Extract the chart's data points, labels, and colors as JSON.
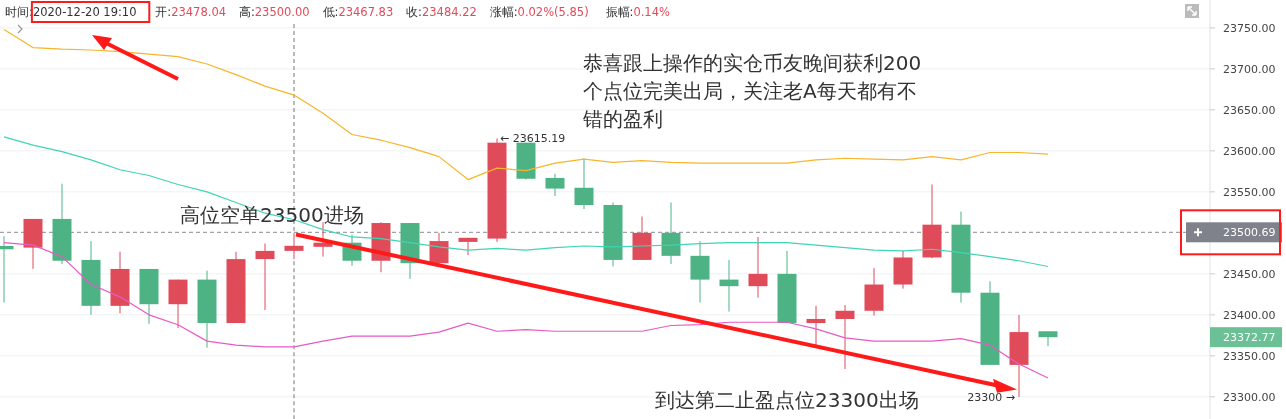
{
  "chart_data": {
    "type": "candlestick",
    "categories": [
      null,
      null,
      null,
      null,
      null,
      null,
      null,
      null,
      null,
      null,
      null,
      null,
      null,
      null,
      null,
      null,
      null,
      null,
      null,
      null,
      null,
      null,
      null,
      null,
      null,
      null,
      null,
      null,
      null,
      null,
      null,
      null,
      null,
      null,
      null,
      null,
      null
    ],
    "ohlc": [
      [
        23484,
        23496,
        23415,
        23480
      ],
      [
        23482,
        23517,
        23456,
        23517
      ],
      [
        23517,
        23560,
        23462,
        23466
      ],
      [
        23467,
        23490,
        23400,
        23411
      ],
      [
        23411,
        23477,
        23402,
        23456
      ],
      [
        23456,
        23456,
        23389,
        23413
      ],
      [
        23413,
        23443,
        23384,
        23443
      ],
      [
        23443,
        23454,
        23360,
        23390
      ],
      [
        23390,
        23477,
        23390,
        23468
      ],
      [
        23468,
        23487,
        23406,
        23478
      ],
      [
        23478.04,
        23500,
        23467.83,
        23484.22
      ],
      [
        23483,
        23513,
        23471,
        23488
      ],
      [
        23488,
        23498,
        23460,
        23466
      ],
      [
        23466,
        23513,
        23452,
        23512
      ],
      [
        23512,
        23512,
        23444,
        23463
      ],
      [
        23463,
        23500,
        23462,
        23490
      ],
      [
        23489,
        23494,
        23473,
        23494
      ],
      [
        23493,
        23615.19,
        23489,
        23610
      ],
      [
        23610,
        23610,
        23565,
        23566
      ],
      [
        23567,
        23572,
        23545,
        23554
      ],
      [
        23555,
        23591,
        23529,
        23534
      ],
      [
        23534,
        23537,
        23459,
        23467
      ],
      [
        23467,
        23520,
        23467,
        23500
      ],
      [
        23500,
        23537,
        23462,
        23472
      ],
      [
        23472,
        23490,
        23415,
        23443
      ],
      [
        23443,
        23467,
        23404,
        23435
      ],
      [
        23435,
        23495,
        23421,
        23450
      ],
      [
        23450,
        23478,
        23390,
        23390
      ],
      [
        23390,
        23411,
        23363,
        23395
      ],
      [
        23395,
        23412,
        23334,
        23405
      ],
      [
        23405,
        23457,
        23399,
        23437
      ],
      [
        23437,
        23478,
        23432,
        23470
      ],
      [
        23470,
        23559,
        23469,
        23510
      ],
      [
        23510,
        23526,
        23415,
        23427
      ],
      [
        23427,
        23441,
        23339,
        23339
      ],
      [
        23339,
        23400,
        23300,
        23379
      ],
      [
        23380,
        23380,
        23362,
        23372.77
      ]
    ],
    "colors": [
      "#4db384",
      "#e04b5a",
      "#4db384",
      "#4db384",
      "#e04b5a",
      "#4db384",
      "#e04b5a",
      "#4db384",
      "#e04b5a",
      "#e04b5a",
      "#e04b5a",
      "#e04b5a",
      "#4db384",
      "#e04b5a",
      "#4db384",
      "#e04b5a",
      "#e04b5a",
      "#e04b5a",
      "#4db384",
      "#4db384",
      "#4db384",
      "#4db384",
      "#e04b5a",
      "#4db384",
      "#4db384",
      "#4db384",
      "#e04b5a",
      "#4db384",
      "#e04b5a",
      "#e04b5a",
      "#e04b5a",
      "#e04b5a",
      "#e04b5a",
      "#4db384",
      "#4db384",
      "#e04b5a",
      "#4db384"
    ],
    "series": [
      {
        "type": "line",
        "color": "#f6b52c",
        "values": [
          23748,
          23726,
          23724,
          23723,
          23721,
          23718,
          23715,
          23706,
          23693,
          23679,
          23668,
          23646,
          23620,
          23613,
          23604,
          23593,
          23565,
          23579,
          23576,
          23585,
          23590,
          23586,
          23588,
          23586,
          23585,
          23585,
          23585,
          23585,
          23589,
          23591,
          23590,
          23589,
          23593,
          23589,
          23598,
          23598,
          23596
        ]
      },
      {
        "type": "line",
        "color": "#3fd5b5",
        "values": [
          23617,
          23607,
          23599,
          23589,
          23577,
          23570,
          23559,
          23550,
          23537,
          23524,
          23516,
          23504,
          23495,
          23493,
          23488,
          23483,
          23479,
          23481,
          23479,
          23482,
          23484,
          23483,
          23484,
          23485,
          23487,
          23488,
          23488,
          23488,
          23485,
          23482,
          23479,
          23478,
          23480,
          23476,
          23471,
          23466,
          23459
        ]
      },
      {
        "type": "line",
        "color": "#e65ac6",
        "values": [
          23488,
          23485,
          23471,
          23437,
          23422,
          23400,
          23388,
          23368,
          23363,
          23361,
          23361,
          23368,
          23374,
          23374,
          23374,
          23379,
          23390,
          23380,
          23382,
          23380,
          23380,
          23380,
          23380,
          23387,
          23388,
          23391,
          23391,
          23391,
          23383,
          23372,
          23368,
          23368,
          23368,
          23371,
          23363,
          23340,
          23323
        ]
      }
    ],
    "ylim": [
      23273,
      23784
    ],
    "yticks": [
      {
        "value": 23300,
        "label": "23300.00"
      },
      {
        "value": 23350,
        "label": "23350.00"
      },
      {
        "value": 23400,
        "label": "23400.00"
      },
      {
        "value": 23450,
        "label": "23450.00"
      },
      {
        "value": 23550,
        "label": "23550.00"
      },
      {
        "value": 23600,
        "label": "23600.00"
      },
      {
        "value": 23650,
        "label": "23650.00"
      },
      {
        "value": 23700,
        "label": "23700.00"
      },
      {
        "value": 23750,
        "label": "23750.00"
      }
    ],
    "grid": "y",
    "ref_lines": [
      {
        "axis": "y",
        "value": 23500.69,
        "label": "23500.69",
        "color": "#8a8d93",
        "line_style": "dashed"
      }
    ],
    "annotations": [
      "时间:2020-12-20 19:10",
      "开:23478.04",
      "高:23500.00",
      "低:23467.83",
      "收:23484.22",
      "涨幅:0.02%(5.85)",
      "振幅:0.14%",
      "恭喜跟上操作的实仓币友晚间获利200个点位完美出局，关注老A每天都有不错的盈利",
      "高位空单23500进场",
      "到达第二止盈点位23300出场",
      {
        "text": "← 23615.19",
        "y": 23615.19
      },
      "23300 →",
      "23372.77"
    ]
  }
}
